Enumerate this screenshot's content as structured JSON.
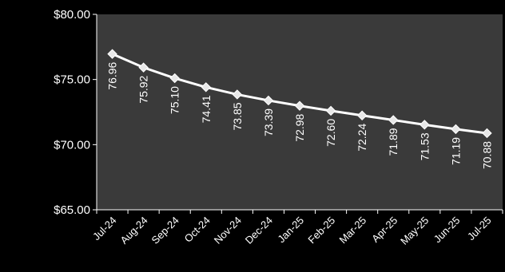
{
  "chart_data": {
    "type": "line",
    "categories": [
      "Jul-24",
      "Aug-24",
      "Sep-24",
      "Oct-24",
      "Nov-24",
      "Dec-24",
      "Jan-25",
      "Feb-25",
      "Mar-25",
      "Apr-25",
      "May-25",
      "Jun-25",
      "Jul-25"
    ],
    "series": [
      {
        "values": [
          76.96,
          75.92,
          75.1,
          74.41,
          73.85,
          73.39,
          72.98,
          72.6,
          72.24,
          71.89,
          71.53,
          71.19,
          70.88
        ],
        "labels": [
          "76.96",
          "75.92",
          "75.10",
          "74.41",
          "73.85",
          "73.39",
          "72.98",
          "72.60",
          "72.24",
          "71.89",
          "71.53",
          "71.19",
          "70.88"
        ]
      }
    ],
    "y_ticks": [
      "$65.00",
      "$70.00",
      "$75.00",
      "$80.00"
    ],
    "ylim": [
      65,
      80
    ],
    "grid": false,
    "legend": "none",
    "title": "",
    "xlabel": "",
    "ylabel": ""
  },
  "colors": {
    "background": "#000000",
    "plot_area": "#3a3a3a",
    "line": "#ffffff",
    "marker_fill": "#e8e8e8",
    "text": "#ffffff"
  }
}
